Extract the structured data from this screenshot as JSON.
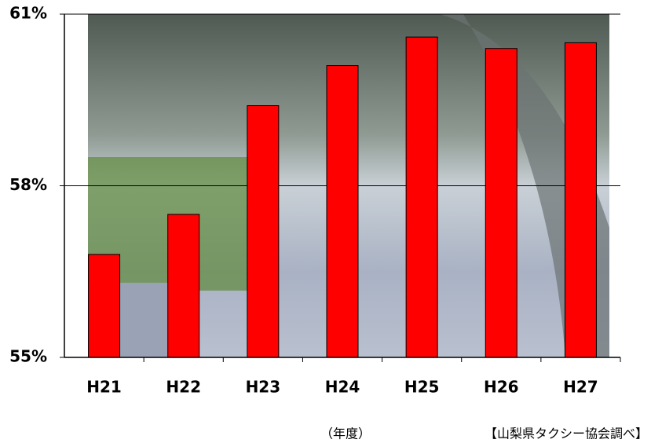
{
  "chart_data": {
    "type": "bar",
    "categories": [
      "H21",
      "H22",
      "H23",
      "H24",
      "H25",
      "H26",
      "H27"
    ],
    "values": [
      56.8,
      57.5,
      59.4,
      60.1,
      60.6,
      60.4,
      60.5
    ],
    "color": "#ff0000",
    "ylim": [
      55,
      61
    ],
    "yticks": [
      {
        "value": 55,
        "label": "55%"
      },
      {
        "value": 58,
        "label": "58%"
      },
      {
        "value": 61,
        "label": "61%"
      }
    ],
    "grid": true,
    "x_label": "（年度）",
    "source": "【山梨県タクシー協会調べ】"
  }
}
